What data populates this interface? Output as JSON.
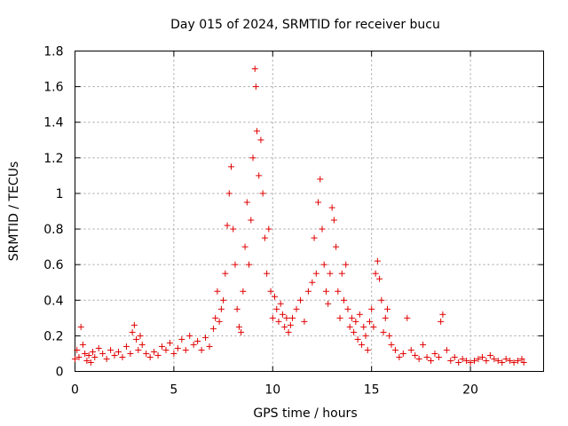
{
  "chart_data": {
    "type": "scatter",
    "title": "Day 015 of 2024, SRMTID for receiver bucu",
    "xlabel": "GPS time / hours",
    "ylabel": "SRMTID / TECUs",
    "xlim": [
      0,
      23.7
    ],
    "ylim": [
      0,
      1.8
    ],
    "x_ticks": [
      0,
      5,
      10,
      15,
      20
    ],
    "x_tick_labels": [
      "0",
      "5",
      "10",
      "15",
      "20"
    ],
    "y_ticks": [
      0,
      0.2,
      0.4,
      0.6,
      0.8,
      1.0,
      1.2,
      1.4,
      1.6,
      1.8
    ],
    "y_tick_labels": [
      "0",
      "0.2",
      "0.4",
      "0.6",
      "0.8",
      "1",
      "1.2",
      "1.4",
      "1.6",
      "1.8"
    ],
    "grid": true,
    "marker": "plus",
    "marker_color": "#e00000",
    "series": [
      {
        "name": "SRMTID",
        "x": [
          0.0,
          0.1,
          0.2,
          0.3,
          0.4,
          0.5,
          0.6,
          0.7,
          0.8,
          0.9,
          1.0,
          1.2,
          1.4,
          1.6,
          1.8,
          2.0,
          2.2,
          2.4,
          2.6,
          2.8,
          2.9,
          3.0,
          3.1,
          3.2,
          3.3,
          3.4,
          3.6,
          3.8,
          4.0,
          4.2,
          4.4,
          4.6,
          4.8,
          5.0,
          5.2,
          5.4,
          5.6,
          5.8,
          6.0,
          6.2,
          6.4,
          6.6,
          6.8,
          7.0,
          7.1,
          7.2,
          7.3,
          7.4,
          7.5,
          7.6,
          7.7,
          7.8,
          7.9,
          8.0,
          8.1,
          8.2,
          8.3,
          8.4,
          8.5,
          8.6,
          8.7,
          8.8,
          8.9,
          9.0,
          9.1,
          9.15,
          9.2,
          9.3,
          9.4,
          9.5,
          9.6,
          9.7,
          9.8,
          9.9,
          10.0,
          10.1,
          10.2,
          10.3,
          10.4,
          10.5,
          10.6,
          10.7,
          10.8,
          10.9,
          11.0,
          11.2,
          11.4,
          11.6,
          11.8,
          12.0,
          12.1,
          12.2,
          12.3,
          12.4,
          12.5,
          12.6,
          12.7,
          12.8,
          12.9,
          13.0,
          13.1,
          13.2,
          13.3,
          13.4,
          13.5,
          13.6,
          13.7,
          13.8,
          13.9,
          14.0,
          14.1,
          14.2,
          14.3,
          14.4,
          14.5,
          14.6,
          14.7,
          14.8,
          14.9,
          15.0,
          15.1,
          15.2,
          15.3,
          15.4,
          15.5,
          15.6,
          15.7,
          15.8,
          15.9,
          16.0,
          16.2,
          16.4,
          16.6,
          16.8,
          17.0,
          17.2,
          17.4,
          17.6,
          17.8,
          18.0,
          18.2,
          18.4,
          18.5,
          18.6,
          18.8,
          19.0,
          19.2,
          19.4,
          19.6,
          19.8,
          20.0,
          20.2,
          20.4,
          20.6,
          20.8,
          21.0,
          21.2,
          21.4,
          21.6,
          21.8,
          22.0,
          22.2,
          22.4,
          22.6,
          22.7
        ],
        "y": [
          0.07,
          0.12,
          0.08,
          0.25,
          0.15,
          0.1,
          0.06,
          0.09,
          0.05,
          0.11,
          0.08,
          0.13,
          0.1,
          0.07,
          0.12,
          0.09,
          0.11,
          0.08,
          0.14,
          0.1,
          0.22,
          0.26,
          0.18,
          0.12,
          0.2,
          0.15,
          0.1,
          0.08,
          0.11,
          0.09,
          0.14,
          0.12,
          0.16,
          0.1,
          0.13,
          0.18,
          0.12,
          0.2,
          0.15,
          0.17,
          0.12,
          0.19,
          0.14,
          0.24,
          0.3,
          0.45,
          0.28,
          0.35,
          0.4,
          0.55,
          0.82,
          1.0,
          1.15,
          0.8,
          0.6,
          0.35,
          0.25,
          0.22,
          0.45,
          0.7,
          0.95,
          0.6,
          0.85,
          1.2,
          1.7,
          1.6,
          1.35,
          1.1,
          1.3,
          1.0,
          0.75,
          0.55,
          0.8,
          0.45,
          0.3,
          0.42,
          0.35,
          0.28,
          0.38,
          0.32,
          0.25,
          0.3,
          0.22,
          0.26,
          0.3,
          0.35,
          0.4,
          0.28,
          0.45,
          0.5,
          0.75,
          0.55,
          0.95,
          1.08,
          0.8,
          0.6,
          0.45,
          0.38,
          0.55,
          0.92,
          0.85,
          0.7,
          0.45,
          0.3,
          0.55,
          0.4,
          0.6,
          0.35,
          0.25,
          0.3,
          0.22,
          0.28,
          0.18,
          0.32,
          0.15,
          0.25,
          0.2,
          0.12,
          0.28,
          0.35,
          0.25,
          0.55,
          0.62,
          0.52,
          0.4,
          0.22,
          0.3,
          0.35,
          0.2,
          0.15,
          0.12,
          0.08,
          0.1,
          0.3,
          0.12,
          0.09,
          0.07,
          0.15,
          0.08,
          0.06,
          0.1,
          0.08,
          0.28,
          0.32,
          0.12,
          0.06,
          0.08,
          0.05,
          0.07,
          0.06,
          0.05,
          0.06,
          0.07,
          0.08,
          0.06,
          0.09,
          0.07,
          0.06,
          0.05,
          0.07,
          0.06,
          0.05,
          0.06,
          0.07,
          0.05
        ]
      }
    ]
  }
}
